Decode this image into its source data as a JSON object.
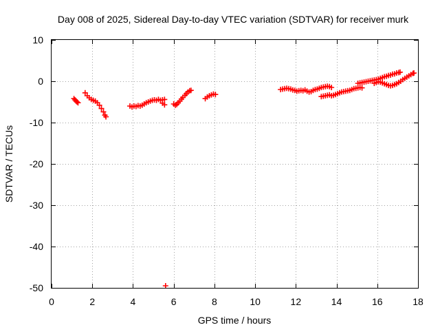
{
  "chart_data": {
    "type": "scatter",
    "title": "Day 008 of 2025, Sidereal Day-to-day VTEC variation (SDTVAR) for receiver murk",
    "xlabel": "GPS time / hours",
    "ylabel": "SDTVAR / TECUs",
    "xlim": [
      0,
      18
    ],
    "ylim": [
      -50,
      10
    ],
    "xticks": [
      0,
      2,
      4,
      6,
      8,
      10,
      12,
      14,
      16,
      18
    ],
    "yticks": [
      10,
      0,
      -10,
      -20,
      -30,
      -40,
      -50
    ],
    "grid": true,
    "marker": "+",
    "color": "#ff0000",
    "series": [
      {
        "name": "seg-1.2",
        "points": [
          [
            1.1,
            -4.2
          ],
          [
            1.15,
            -4.5
          ],
          [
            1.2,
            -4.8
          ],
          [
            1.25,
            -5.0
          ],
          [
            1.3,
            -5.2
          ]
        ]
      },
      {
        "name": "seg-1.7",
        "points": [
          [
            1.65,
            -2.8
          ],
          [
            1.75,
            -3.5
          ],
          [
            1.85,
            -4.0
          ],
          [
            1.95,
            -4.4
          ],
          [
            2.05,
            -4.6
          ],
          [
            2.15,
            -4.8
          ],
          [
            2.25,
            -5.2
          ],
          [
            2.35,
            -5.8
          ],
          [
            2.45,
            -6.6
          ],
          [
            2.55,
            -7.4
          ],
          [
            2.62,
            -8.2
          ],
          [
            2.67,
            -8.6
          ]
        ]
      },
      {
        "name": "seg-3.9",
        "points": [
          [
            3.85,
            -6.0
          ],
          [
            3.95,
            -6.2
          ],
          [
            4.05,
            -6.0
          ],
          [
            4.15,
            -6.1
          ],
          [
            4.25,
            -5.9
          ],
          [
            4.35,
            -6.0
          ],
          [
            4.45,
            -5.8
          ],
          [
            4.55,
            -5.5
          ],
          [
            4.65,
            -5.2
          ],
          [
            4.75,
            -5.0
          ],
          [
            4.85,
            -4.8
          ],
          [
            4.95,
            -4.6
          ],
          [
            5.05,
            -4.5
          ],
          [
            5.15,
            -4.6
          ],
          [
            5.25,
            -4.4
          ],
          [
            5.35,
            -4.6
          ],
          [
            5.45,
            -4.5
          ],
          [
            5.55,
            -4.4
          ],
          [
            5.45,
            -5.3
          ],
          [
            5.55,
            -5.7
          ]
        ]
      },
      {
        "name": "seg-6.0",
        "points": [
          [
            6.0,
            -5.5
          ],
          [
            6.08,
            -5.8
          ],
          [
            6.15,
            -5.6
          ],
          [
            6.22,
            -5.2
          ],
          [
            6.3,
            -4.8
          ],
          [
            6.38,
            -4.3
          ],
          [
            6.45,
            -3.9
          ],
          [
            6.55,
            -3.4
          ],
          [
            6.62,
            -3.0
          ],
          [
            6.7,
            -2.6
          ],
          [
            6.78,
            -2.3
          ],
          [
            6.85,
            -2.2
          ]
        ]
      },
      {
        "name": "seg-7.6",
        "points": [
          [
            7.55,
            -4.2
          ],
          [
            7.65,
            -3.8
          ],
          [
            7.75,
            -3.5
          ],
          [
            7.85,
            -3.3
          ],
          [
            7.95,
            -3.1
          ],
          [
            8.05,
            -3.2
          ]
        ]
      },
      {
        "name": "seg-11.3",
        "points": [
          [
            11.25,
            -2.0
          ],
          [
            11.35,
            -1.9
          ],
          [
            11.45,
            -1.8
          ],
          [
            11.55,
            -1.7
          ],
          [
            11.65,
            -1.8
          ],
          [
            11.75,
            -1.9
          ],
          [
            11.85,
            -2.1
          ],
          [
            11.95,
            -2.2
          ],
          [
            12.05,
            -2.4
          ],
          [
            12.15,
            -2.3
          ],
          [
            12.25,
            -2.2
          ],
          [
            12.35,
            -2.3
          ],
          [
            12.45,
            -2.1
          ],
          [
            12.55,
            -2.4
          ],
          [
            12.65,
            -2.6
          ],
          [
            12.75,
            -2.5
          ],
          [
            12.85,
            -2.2
          ],
          [
            12.95,
            -2.0
          ],
          [
            13.05,
            -1.9
          ],
          [
            13.15,
            -1.7
          ],
          [
            13.25,
            -1.5
          ],
          [
            13.35,
            -1.4
          ],
          [
            13.45,
            -1.3
          ],
          [
            13.55,
            -1.2
          ],
          [
            13.65,
            -1.3
          ],
          [
            13.75,
            -1.5
          ]
        ]
      },
      {
        "name": "seg-13.3",
        "points": [
          [
            13.25,
            -3.7
          ],
          [
            13.35,
            -3.6
          ],
          [
            13.45,
            -3.5
          ],
          [
            13.55,
            -3.4
          ],
          [
            13.65,
            -3.3
          ],
          [
            13.75,
            -3.5
          ],
          [
            13.85,
            -3.4
          ],
          [
            13.95,
            -3.2
          ],
          [
            14.05,
            -3.0
          ],
          [
            14.15,
            -2.8
          ],
          [
            14.25,
            -2.6
          ],
          [
            14.35,
            -2.5
          ],
          [
            14.45,
            -2.4
          ],
          [
            14.55,
            -2.3
          ],
          [
            14.65,
            -2.2
          ],
          [
            14.75,
            -2.0
          ],
          [
            14.85,
            -1.8
          ],
          [
            14.95,
            -1.7
          ],
          [
            15.05,
            -1.6
          ],
          [
            15.15,
            -1.5
          ],
          [
            15.25,
            -1.6
          ]
        ]
      },
      {
        "name": "seg-15.1",
        "points": [
          [
            15.05,
            -0.5
          ],
          [
            15.15,
            -0.4
          ],
          [
            15.25,
            -0.3
          ],
          [
            15.35,
            -0.2
          ],
          [
            15.45,
            -0.1
          ],
          [
            15.55,
            0.0
          ],
          [
            15.65,
            0.1
          ],
          [
            15.75,
            0.2
          ],
          [
            15.85,
            0.3
          ],
          [
            15.95,
            0.4
          ],
          [
            16.05,
            0.5
          ],
          [
            16.15,
            0.7
          ],
          [
            16.25,
            0.9
          ],
          [
            16.35,
            1.1
          ],
          [
            16.45,
            1.2
          ],
          [
            16.55,
            1.4
          ],
          [
            16.65,
            1.5
          ],
          [
            16.75,
            1.7
          ],
          [
            16.85,
            1.8
          ],
          [
            16.95,
            2.0
          ],
          [
            17.05,
            2.1
          ],
          [
            17.12,
            2.2
          ]
        ]
      },
      {
        "name": "seg-15.9",
        "points": [
          [
            15.85,
            -0.5
          ],
          [
            15.95,
            -0.3
          ],
          [
            16.05,
            -0.1
          ],
          [
            16.15,
            -0.2
          ],
          [
            16.25,
            -0.4
          ],
          [
            16.35,
            -0.6
          ],
          [
            16.45,
            -0.8
          ],
          [
            16.55,
            -1.0
          ],
          [
            16.65,
            -1.1
          ],
          [
            16.75,
            -1.0
          ],
          [
            16.85,
            -0.8
          ],
          [
            16.95,
            -0.6
          ],
          [
            17.05,
            -0.3
          ],
          [
            17.15,
            0.0
          ],
          [
            17.25,
            0.4
          ],
          [
            17.35,
            0.7
          ],
          [
            17.45,
            1.0
          ],
          [
            17.55,
            1.3
          ],
          [
            17.65,
            1.6
          ],
          [
            17.75,
            1.9
          ],
          [
            17.8,
            2.0
          ]
        ]
      },
      {
        "name": "outlier",
        "points": [
          [
            5.6,
            -49.5
          ]
        ]
      }
    ]
  }
}
